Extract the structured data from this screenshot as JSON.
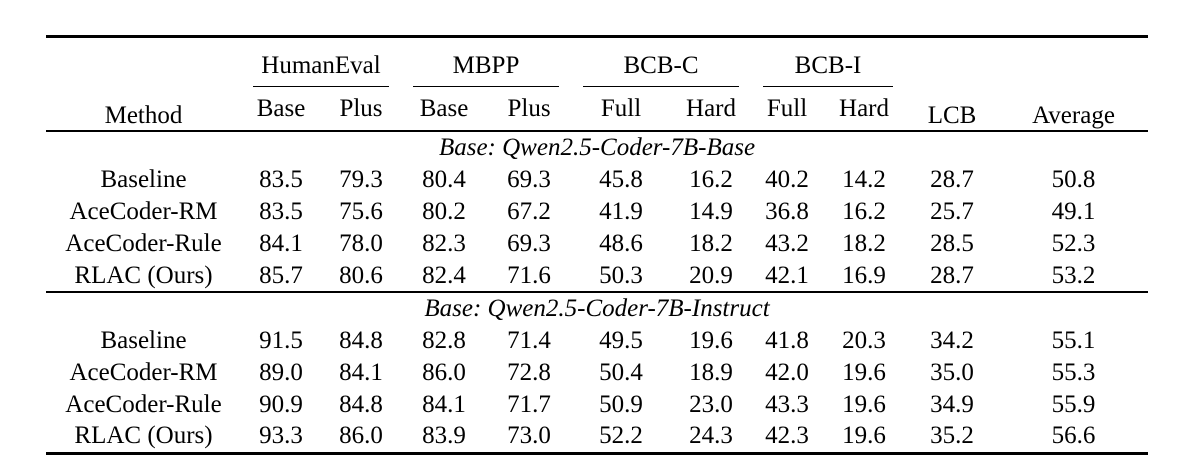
{
  "table": {
    "header": {
      "method": "Method",
      "groups": [
        {
          "label": "HumanEval",
          "sub": [
            "Base",
            "Plus"
          ]
        },
        {
          "label": "MBPP",
          "sub": [
            "Base",
            "Plus"
          ]
        },
        {
          "label": "BCB-C",
          "sub": [
            "Full",
            "Hard"
          ]
        },
        {
          "label": "BCB-I",
          "sub": [
            "Full",
            "Hard"
          ]
        }
      ],
      "single": [
        "LCB",
        "Average"
      ]
    },
    "sections": [
      {
        "title": "Base: Qwen2.5-Coder-7B-Base",
        "rows": [
          {
            "method": "Baseline",
            "values": [
              "83.5",
              "79.3",
              "80.4",
              "69.3",
              "45.8",
              "16.2",
              "40.2",
              "14.2",
              "28.7",
              "50.8"
            ],
            "bold": [
              8
            ]
          },
          {
            "method": "AceCoder-RM",
            "values": [
              "83.5",
              "75.6",
              "80.2",
              "67.2",
              "41.9",
              "14.9",
              "36.8",
              "16.2",
              "25.7",
              "49.1"
            ],
            "bold": []
          },
          {
            "method": "AceCoder-Rule",
            "values": [
              "84.1",
              "78.0",
              "82.3",
              "69.3",
              "48.6",
              "18.2",
              "43.2",
              "18.2",
              "28.5",
              "52.3"
            ],
            "bold": [
              6,
              7
            ]
          },
          {
            "method": "RLAC (Ours)",
            "values": [
              "85.7",
              "80.6",
              "82.4",
              "71.6",
              "50.3",
              "20.9",
              "42.1",
              "16.9",
              "28.7",
              "53.2"
            ],
            "bold": [
              0,
              1,
              2,
              3,
              4,
              5,
              9
            ]
          }
        ]
      },
      {
        "title": "Base: Qwen2.5-Coder-7B-Instruct",
        "rows": [
          {
            "method": "Baseline",
            "values": [
              "91.5",
              "84.8",
              "82.8",
              "71.4",
              "49.5",
              "19.6",
              "41.8",
              "20.3",
              "34.2",
              "55.1"
            ],
            "bold": [
              7
            ]
          },
          {
            "method": "AceCoder-RM",
            "values": [
              "89.0",
              "84.1",
              "86.0",
              "72.8",
              "50.4",
              "18.9",
              "42.0",
              "19.6",
              "35.0",
              "55.3"
            ],
            "bold": [
              2
            ]
          },
          {
            "method": "AceCoder-Rule",
            "values": [
              "90.9",
              "84.8",
              "84.1",
              "71.7",
              "50.9",
              "23.0",
              "43.3",
              "19.6",
              "34.9",
              "55.9"
            ],
            "bold": [
              6
            ]
          },
          {
            "method": "RLAC (Ours)",
            "values": [
              "93.3",
              "86.0",
              "83.9",
              "73.0",
              "52.2",
              "24.3",
              "42.3",
              "19.6",
              "35.2",
              "56.6"
            ],
            "bold": [
              0,
              1,
              3,
              4,
              5,
              8,
              9
            ]
          }
        ]
      }
    ],
    "colors": {
      "text": "#000000",
      "rule": "#000000",
      "background": "#ffffff"
    }
  }
}
